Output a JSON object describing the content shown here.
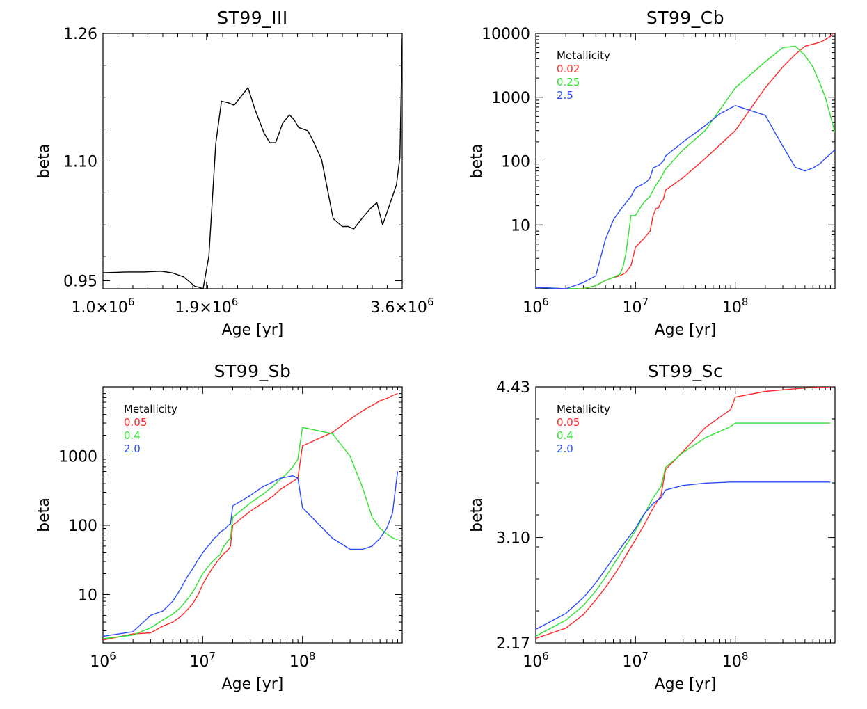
{
  "chart_data": [
    {
      "type": "line",
      "title": "ST99_III",
      "xlabel": "Age [yr]",
      "ylabel": "beta",
      "xscale": "linear",
      "yscale": "linear",
      "xlim": [
        1000000,
        3600000
      ],
      "ylim": [
        0.94,
        1.26
      ],
      "xticks": [
        1000000,
        1900000,
        3600000
      ],
      "xtick_labels": [
        "1.0×10^6",
        "1.9×10^6",
        "3.6×10^6"
      ],
      "yticks": [
        0.95,
        1.1,
        1.26
      ],
      "ytick_labels": [
        "0.95",
        "1.10",
        "1.26"
      ],
      "legend": null,
      "series": [
        {
          "color": "#000000",
          "x": [
            1000000,
            1200000,
            1350000,
            1500000,
            1600000,
            1700000,
            1800000,
            1830000,
            1870000,
            1920000,
            1980000,
            2030000,
            2090000,
            2140000,
            2200000,
            2260000,
            2320000,
            2400000,
            2450000,
            2500000,
            2560000,
            2620000,
            2660000,
            2700000,
            2780000,
            2830000,
            2900000,
            3000000,
            3080000,
            3130000,
            3180000,
            3250000,
            3320000,
            3380000,
            3430000,
            3490000,
            3550000,
            3580000,
            3600000
          ],
          "y": [
            0.96,
            0.961,
            0.961,
            0.962,
            0.96,
            0.955,
            0.943,
            0.942,
            0.94,
            0.981,
            1.122,
            1.175,
            1.173,
            1.17,
            1.181,
            1.192,
            1.165,
            1.135,
            1.123,
            1.123,
            1.147,
            1.158,
            1.152,
            1.142,
            1.138,
            1.124,
            1.102,
            1.028,
            1.018,
            1.018,
            1.015,
            1.028,
            1.04,
            1.048,
            1.02,
            1.045,
            1.07,
            1.105,
            1.255
          ]
        }
      ]
    },
    {
      "type": "line",
      "title": "ST99_Cb",
      "xlabel": "Age [yr]",
      "ylabel": "beta",
      "xscale": "log",
      "yscale": "log",
      "xlim": [
        1000000,
        1000000000
      ],
      "ylim": [
        1,
        10000
      ],
      "xticks": [
        1000000,
        10000000,
        100000000
      ],
      "xtick_labels": [
        [
          "10",
          "6"
        ],
        [
          "10",
          "7"
        ],
        [
          "10",
          "8"
        ]
      ],
      "yticks": [
        10,
        100,
        1000,
        10000
      ],
      "ytick_labels": [
        "10",
        "100",
        "1000",
        "10000"
      ],
      "legend": {
        "title": "Metallicity",
        "position": "top-left",
        "entries": [
          {
            "label": "0.02",
            "color": "#ff2a2a"
          },
          {
            "label": "0.25",
            "color": "#2ee22e"
          },
          {
            "label": "2.5",
            "color": "#2b4bff"
          }
        ]
      },
      "series": [
        {
          "name": "0.02",
          "color": "#ff2a2a",
          "x": [
            1000000,
            2000000,
            3000000,
            4000000,
            5000000,
            6000000,
            7000000,
            8000000,
            9000000,
            10000000,
            12000000,
            14000000,
            15000000,
            16000000,
            17000000,
            18000000,
            19000000,
            20000000,
            30000000,
            50000000,
            100000000,
            200000000,
            300000000,
            400000000,
            500000000,
            600000000,
            700000000,
            800000000,
            900000000,
            1000000000
          ],
          "y": [
            1.05,
            1.0,
            1.0,
            1.12,
            1.35,
            1.5,
            1.6,
            1.8,
            2.3,
            4.5,
            6,
            8,
            14,
            18,
            18.5,
            23,
            25,
            35,
            55,
            110,
            300,
            1400,
            3000,
            4700,
            6300,
            6800,
            7200,
            8000,
            9000,
            11000
          ]
        },
        {
          "name": "0.25",
          "color": "#2ee22e",
          "x": [
            1000000,
            2000000,
            3000000,
            4000000,
            5000000,
            6000000,
            7000000,
            7500000,
            8000000,
            9000000,
            10000000,
            11000000,
            12000000,
            13000000,
            14000000,
            15000000,
            16000000,
            17000000,
            18000000,
            20000000,
            30000000,
            50000000,
            100000000,
            200000000,
            300000000,
            400000000,
            500000000,
            600000000,
            700000000,
            800000000,
            1000000000
          ],
          "y": [
            1.05,
            1.0,
            1.0,
            1.12,
            1.35,
            1.5,
            1.7,
            2.2,
            3.5,
            14,
            14,
            18,
            22,
            25,
            28,
            35,
            42,
            48,
            55,
            75,
            150,
            300,
            1400,
            3600,
            6000,
            6300,
            4500,
            3000,
            1700,
            1000,
            280
          ]
        },
        {
          "name": "2.5",
          "color": "#2b4bff",
          "x": [
            1000000,
            2000000,
            3000000,
            4000000,
            5000000,
            6000000,
            7000000,
            8000000,
            9000000,
            10000000,
            12000000,
            13000000,
            14000000,
            15000000,
            16000000,
            17000000,
            18000000,
            19000000,
            20000000,
            30000000,
            50000000,
            70000000,
            100000000,
            200000000,
            300000000,
            400000000,
            500000000,
            600000000,
            700000000,
            800000000,
            1000000000
          ],
          "y": [
            1.05,
            1.0,
            1.25,
            1.6,
            6,
            12,
            17,
            22,
            28,
            38,
            44,
            48,
            55,
            78,
            82,
            85,
            92,
            100,
            120,
            200,
            360,
            550,
            740,
            520,
            170,
            80,
            70,
            78,
            90,
            110,
            150
          ]
        }
      ]
    },
    {
      "type": "line",
      "title": "ST99_Sb",
      "xlabel": "Age [yr]",
      "ylabel": "beta",
      "xscale": "log",
      "yscale": "log",
      "xlim": [
        1000000,
        1000000000
      ],
      "ylim": [
        2,
        10000
      ],
      "xticks": [
        1000000,
        10000000,
        100000000
      ],
      "xtick_labels": [
        [
          "10",
          "6"
        ],
        [
          "10",
          "7"
        ],
        [
          "10",
          "8"
        ]
      ],
      "yticks": [
        10,
        100,
        1000
      ],
      "ytick_labels": [
        "10",
        "100",
        "1000"
      ],
      "legend": {
        "title": "Metallicity",
        "position": "top-left",
        "entries": [
          {
            "label": "0.05",
            "color": "#ff2a2a"
          },
          {
            "label": "0.4",
            "color": "#2ee22e"
          },
          {
            "label": "2.0",
            "color": "#2b4bff"
          }
        ]
      },
      "series": [
        {
          "name": "0.05",
          "color": "#ff2a2a",
          "x": [
            1000000,
            2000000,
            3000000,
            4000000,
            5000000,
            6000000,
            7000000,
            8000000,
            9000000,
            10000000,
            12000000,
            14000000,
            15000000,
            16000000,
            18000000,
            19000000,
            20000000,
            30000000,
            40000000,
            50000000,
            60000000,
            70000000,
            80000000,
            90000000,
            100000000,
            200000000,
            300000000,
            400000000,
            500000000,
            600000000,
            700000000,
            800000000,
            900000000
          ],
          "y": [
            2.2,
            2.7,
            2.8,
            3.5,
            4.0,
            4.8,
            6.0,
            7.5,
            10,
            14,
            22,
            30,
            34,
            38,
            44,
            50,
            100,
            160,
            210,
            260,
            330,
            380,
            430,
            480,
            1400,
            2200,
            3400,
            4500,
            5400,
            6300,
            6800,
            7500,
            8000
          ]
        },
        {
          "name": "0.4",
          "color": "#2ee22e",
          "x": [
            1000000,
            2000000,
            3000000,
            4000000,
            5000000,
            6000000,
            7000000,
            8000000,
            9000000,
            10000000,
            12000000,
            14000000,
            15000000,
            16000000,
            18000000,
            19000000,
            20000000,
            30000000,
            40000000,
            50000000,
            60000000,
            70000000,
            80000000,
            90000000,
            100000000,
            200000000,
            300000000,
            400000000,
            500000000,
            600000000,
            700000000,
            800000000,
            900000000
          ],
          "y": [
            2.3,
            2.6,
            3.3,
            4.3,
            5.2,
            6.5,
            8.5,
            11,
            15,
            20,
            28,
            35,
            38,
            48,
            60,
            65,
            130,
            210,
            280,
            360,
            460,
            560,
            700,
            900,
            2600,
            2100,
            1000,
            350,
            130,
            90,
            75,
            66,
            62
          ]
        },
        {
          "name": "2.0",
          "color": "#2b4bff",
          "x": [
            1000000,
            2000000,
            3000000,
            4000000,
            5000000,
            6000000,
            7000000,
            8000000,
            9000000,
            10000000,
            11000000,
            12000000,
            13000000,
            14000000,
            15000000,
            16000000,
            17000000,
            18000000,
            19000000,
            20000000,
            30000000,
            40000000,
            50000000,
            60000000,
            70000000,
            80000000,
            90000000,
            100000000,
            200000000,
            300000000,
            400000000,
            500000000,
            600000000,
            700000000,
            800000000,
            900000000
          ],
          "y": [
            2.5,
            2.9,
            5.0,
            5.8,
            8.0,
            12,
            18,
            24,
            32,
            40,
            48,
            55,
            65,
            70,
            80,
            85,
            90,
            100,
            105,
            190,
            270,
            360,
            420,
            480,
            500,
            520,
            480,
            180,
            65,
            45,
            45,
            50,
            65,
            90,
            150,
            600
          ]
        }
      ]
    },
    {
      "type": "line",
      "title": "ST99_Sc",
      "xlabel": "Age [yr]",
      "ylabel": "beta",
      "xscale": "log",
      "yscale": "linear",
      "xlim": [
        1000000,
        1000000000
      ],
      "ylim": [
        2.17,
        4.43
      ],
      "xticks": [
        1000000,
        10000000,
        100000000
      ],
      "xtick_labels": [
        [
          "10",
          "6"
        ],
        [
          "10",
          "7"
        ],
        [
          "10",
          "8"
        ]
      ],
      "yticks": [
        2.17,
        3.1,
        4.43
      ],
      "ytick_labels": [
        "2.17",
        "3.10",
        "4.43"
      ],
      "legend": {
        "title": "Metallicity",
        "position": "top-left",
        "entries": [
          {
            "label": "0.05",
            "color": "#ff2a2a"
          },
          {
            "label": "0.4",
            "color": "#2ee22e"
          },
          {
            "label": "2.0",
            "color": "#2b4bff"
          }
        ]
      },
      "series": [
        {
          "name": "0.05",
          "color": "#ff2a2a",
          "x": [
            1000000,
            2000000,
            3000000,
            4000000,
            5000000,
            6000000,
            7000000,
            8000000,
            10000000,
            12000000,
            15000000,
            18000000,
            20000000,
            30000000,
            50000000,
            90000000,
            100000000,
            200000000,
            500000000,
            900000000
          ],
          "y": [
            2.21,
            2.3,
            2.42,
            2.55,
            2.66,
            2.76,
            2.85,
            2.94,
            3.08,
            3.2,
            3.36,
            3.47,
            3.7,
            3.86,
            4.07,
            4.23,
            4.34,
            4.39,
            4.42,
            4.43
          ]
        },
        {
          "name": "0.4",
          "color": "#2ee22e",
          "x": [
            1000000,
            2000000,
            3000000,
            4000000,
            5000000,
            6000000,
            7000000,
            8000000,
            10000000,
            12000000,
            15000000,
            18000000,
            20000000,
            30000000,
            50000000,
            90000000,
            100000000,
            200000000,
            500000000,
            900000000
          ],
          "y": [
            2.23,
            2.37,
            2.5,
            2.63,
            2.75,
            2.86,
            2.95,
            3.03,
            3.16,
            3.29,
            3.45,
            3.55,
            3.72,
            3.85,
            3.98,
            4.08,
            4.11,
            4.11,
            4.11,
            4.11
          ]
        },
        {
          "name": "2.0",
          "color": "#2b4bff",
          "x": [
            1000000,
            2000000,
            3000000,
            4000000,
            5000000,
            6000000,
            7000000,
            8000000,
            10000000,
            12000000,
            15000000,
            18000000,
            20000000,
            30000000,
            50000000,
            90000000,
            100000000,
            200000000,
            500000000,
            900000000
          ],
          "y": [
            2.29,
            2.43,
            2.57,
            2.7,
            2.82,
            2.92,
            3.0,
            3.07,
            3.18,
            3.3,
            3.4,
            3.45,
            3.52,
            3.56,
            3.58,
            3.59,
            3.59,
            3.59,
            3.59,
            3.59
          ]
        }
      ]
    }
  ]
}
